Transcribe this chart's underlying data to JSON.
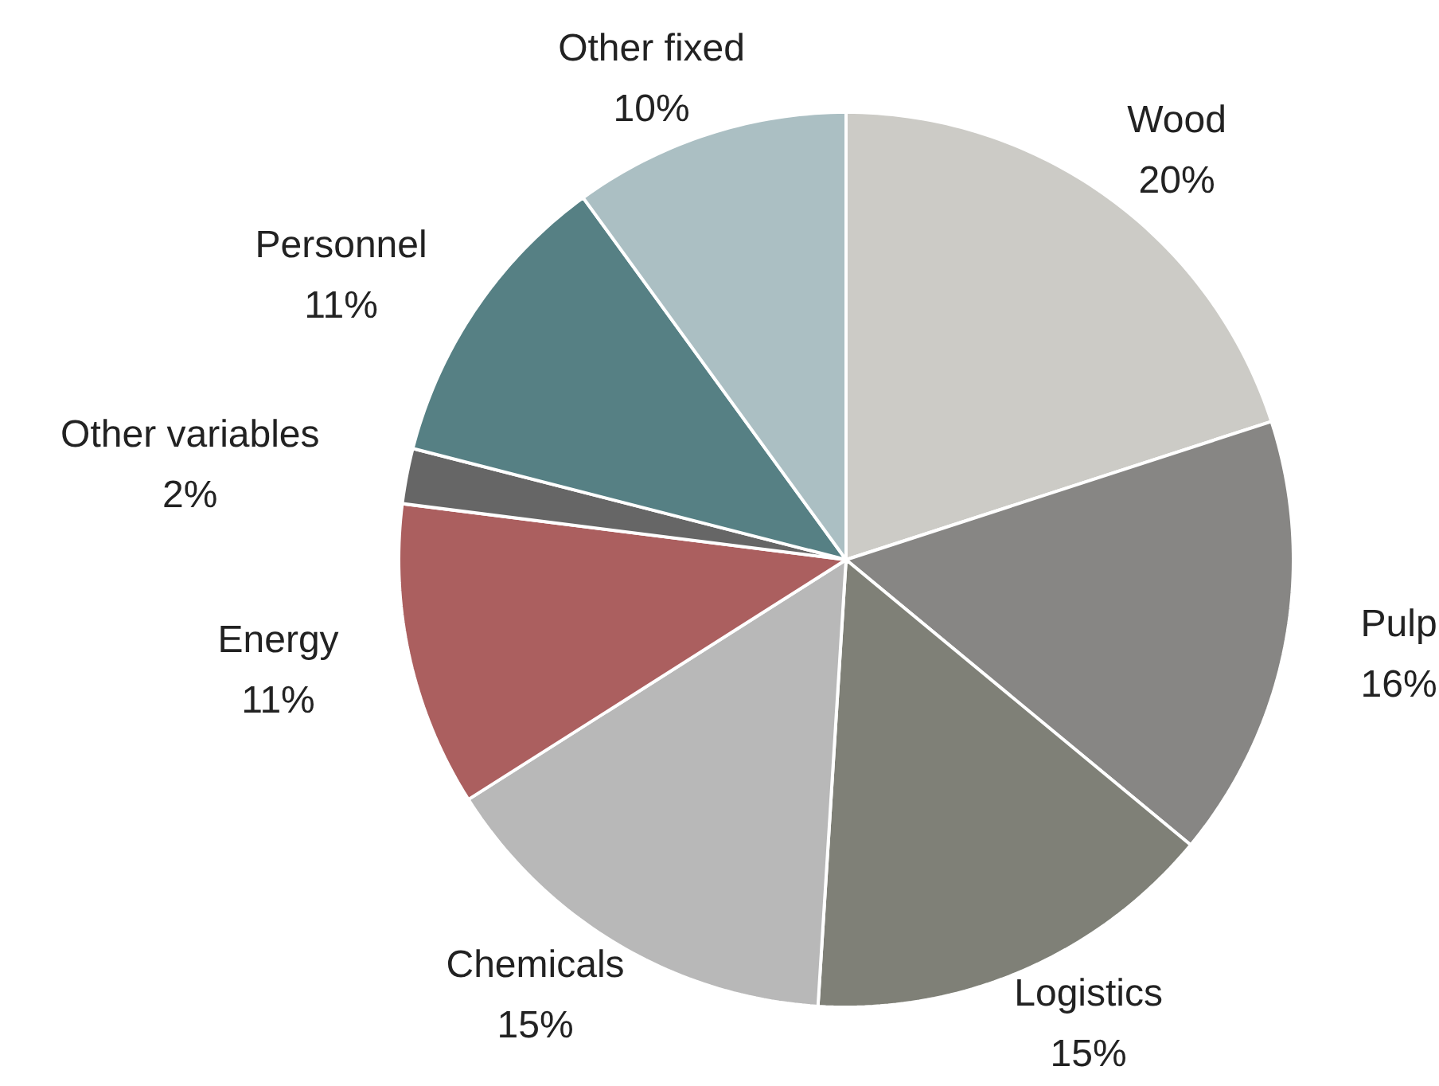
{
  "chart_data": {
    "type": "pie",
    "categories": [
      "Wood",
      "Pulp",
      "Logistics",
      "Chemicals",
      "Energy",
      "Other variables",
      "Personnel",
      "Other fixed"
    ],
    "values": [
      20,
      16,
      15,
      15,
      11,
      2,
      11,
      10
    ],
    "value_labels": [
      "20%",
      "16%",
      "15%",
      "15%",
      "11%",
      "2%",
      "11%",
      "10%"
    ],
    "colors": [
      "#cccbc6",
      "#878684",
      "#7f8077",
      "#b8b8b8",
      "#ab5f5f",
      "#666666",
      "#568084",
      "#abbfc3"
    ]
  }
}
